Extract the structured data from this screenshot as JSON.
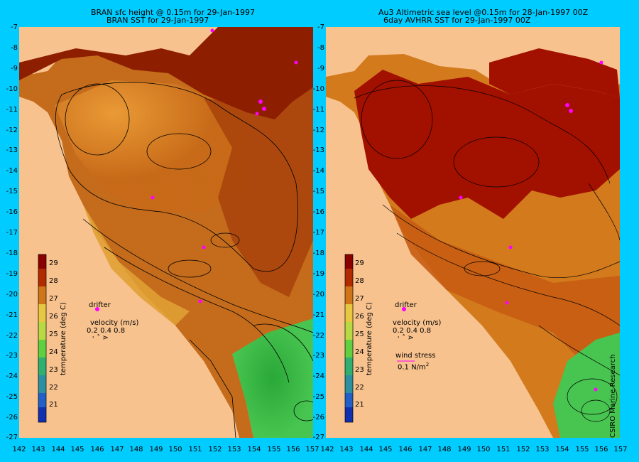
{
  "left_panel": {
    "title_line1": "BRAN sfc height @ 0.15m for 29-Jan-1997",
    "title_line2": "BRAN SST for 29-Jan-1997",
    "legend": {
      "drifter": "drifter",
      "velocity": "velocity (m/s)",
      "velocity_scale": "0.2 0.4 0.8",
      "velocity_arrows": "˒   ˃   ⋗"
    },
    "colorbar_label": "temperature (deg C)"
  },
  "right_panel": {
    "title_line1": "Au3 Altimetric sea level  @0.15m  for 28-Jan-1997 00Z",
    "title_line2": "6day AVHRR SST for 29-Jan-1997 00Z",
    "legend": {
      "drifter": "drifter",
      "velocity": "velocity (m/s)",
      "velocity_scale": "0.2 0.4 0.8",
      "velocity_arrows": "˒   ˃   ⋗",
      "wind_stress": "wind stress",
      "wind_stress_value": "0.1 N/m",
      "wind_stress_exp": "2"
    },
    "colorbar_label": "temperature (deg C)",
    "credit": "CSIRO Marine Research"
  },
  "axes": {
    "lat_labels": [
      "-7",
      "-8",
      "-9",
      "-10",
      "-11",
      "-12",
      "-13",
      "-14",
      "-15",
      "-16",
      "-17",
      "-18",
      "-19",
      "-20",
      "-21",
      "-22",
      "-23",
      "-24",
      "-25",
      "-26",
      "-27"
    ],
    "lon_labels_left": [
      "142",
      "143",
      "144",
      "145",
      "146",
      "147",
      "148",
      "149",
      "150",
      "151",
      "152",
      "153",
      "154",
      "155",
      "156",
      "157"
    ],
    "lon_labels_right": [
      "142",
      "143",
      "144",
      "145",
      "146",
      "147",
      "148",
      "149",
      "150",
      "151",
      "152",
      "153",
      "154",
      "155",
      "156",
      "157"
    ]
  },
  "colorbar": {
    "ticks": [
      "29",
      "28",
      "27",
      "26",
      "25",
      "24",
      "23",
      "22",
      "21"
    ],
    "colors": [
      "#8b0000",
      "#b22a00",
      "#c24a0a",
      "#d0741a",
      "#e39b2a",
      "#e8c840",
      "#b8d844",
      "#60d040",
      "#30b070",
      "#2c90a0",
      "#2060c8",
      "#1030b0",
      "#000080"
    ]
  },
  "colors": {
    "frame_bg": "#00ccff",
    "land": "#f7c28e",
    "drifter": "#ff00ff"
  }
}
